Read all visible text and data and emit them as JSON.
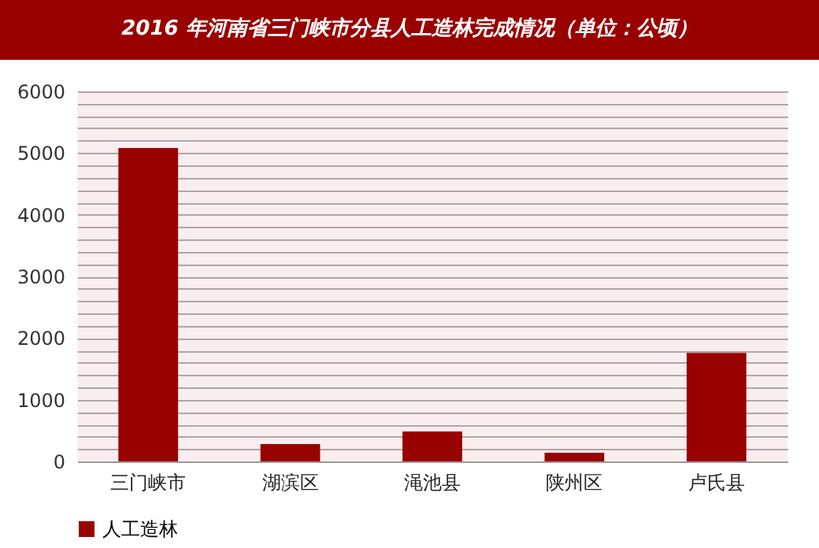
{
  "chart_data": {
    "type": "bar",
    "title": "2016 年河南省三门峡市分县人工造林完成情况（单位：公顷）",
    "categories": [
      "三门峡市",
      "湖滨区",
      "渑池县",
      "陕州区",
      "卢氏县"
    ],
    "series": [
      {
        "name": "人工造林",
        "color": "#990000",
        "values": [
          5080,
          280,
          485,
          140,
          1760
        ]
      }
    ],
    "ylim": [
      0,
      6000
    ],
    "yticks": [
      0,
      {
        "value": 200,
        "label": null
      },
      {
        "value": 400,
        "label": null
      },
      {
        "value": 600,
        "label": null
      },
      {
        "value": 800,
        "label": null
      },
      1000,
      {
        "value": 1200,
        "label": null
      },
      {
        "value": 1400,
        "label": null
      },
      {
        "value": 1600,
        "label": null
      },
      {
        "value": 1800,
        "label": null
      },
      2000,
      {
        "value": 2200,
        "label": null
      },
      {
        "value": 2400,
        "label": null
      },
      {
        "value": 2600,
        "label": null
      },
      {
        "value": 2800,
        "label": null
      },
      3000,
      {
        "value": 3200,
        "label": null
      },
      {
        "value": 3400,
        "label": null
      },
      {
        "value": 3600,
        "label": null
      },
      {
        "value": 3800,
        "label": null
      },
      4000,
      {
        "value": 4200,
        "label": null
      },
      {
        "value": 4400,
        "label": null
      },
      {
        "value": 4600,
        "label": null
      },
      {
        "value": 4800,
        "label": null
      },
      5000,
      {
        "value": 5200,
        "label": null
      },
      {
        "value": 5400,
        "label": null
      },
      {
        "value": 5600,
        "label": null
      },
      {
        "value": 5800,
        "label": null
      },
      6000
    ],
    "grid": "y",
    "legend": "bottom"
  }
}
